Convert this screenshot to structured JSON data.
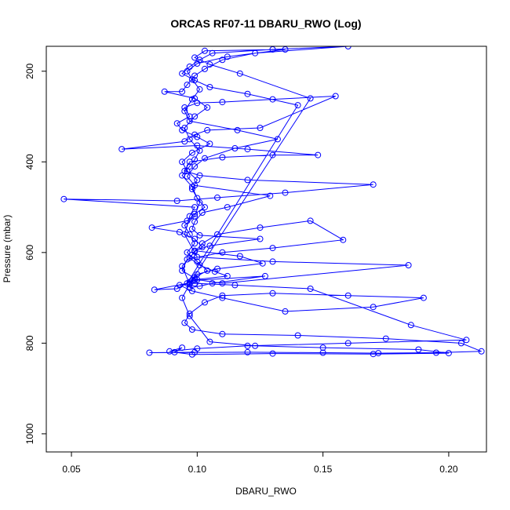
{
  "chart_data": {
    "type": "line",
    "title": "ORCAS RF07-11 DBARU_RWO (Log)",
    "xlabel": "DBARU_RWO",
    "ylabel": "Pressure (mbar)",
    "xlim": [
      0.04,
      0.215
    ],
    "ylim": [
      1040,
      145
    ],
    "y_inverted": true,
    "x_ticks": [
      0.05,
      0.1,
      0.15,
      0.2
    ],
    "x_tick_labels": [
      "0.05",
      "0.10",
      "0.15",
      "0.20"
    ],
    "y_ticks": [
      200,
      400,
      600,
      800,
      1000
    ],
    "y_tick_labels": [
      "200",
      "400",
      "600",
      "800",
      "1000"
    ],
    "grid": false,
    "marker": "open-circle",
    "series": [
      {
        "color": "#0000ff",
        "points": [
          [
            0.099,
            820
          ],
          [
            0.081,
            821
          ],
          [
            0.12,
            820
          ],
          [
            0.15,
            821
          ],
          [
            0.172,
            822
          ],
          [
            0.195,
            821
          ],
          [
            0.213,
            818
          ],
          [
            0.205,
            800
          ],
          [
            0.175,
            790
          ],
          [
            0.14,
            783
          ],
          [
            0.11,
            780
          ],
          [
            0.098,
            770
          ],
          [
            0.095,
            755
          ],
          [
            0.097,
            735
          ],
          [
            0.103,
            710
          ],
          [
            0.11,
            695
          ],
          [
            0.13,
            690
          ],
          [
            0.16,
            695
          ],
          [
            0.19,
            700
          ],
          [
            0.17,
            720
          ],
          [
            0.135,
            730
          ],
          [
            0.11,
            700
          ],
          [
            0.098,
            685
          ],
          [
            0.093,
            672
          ],
          [
            0.099,
            668
          ],
          [
            0.115,
            672
          ],
          [
            0.145,
            680
          ],
          [
            0.185,
            760
          ],
          [
            0.207,
            793
          ],
          [
            0.16,
            800
          ],
          [
            0.12,
            806
          ],
          [
            0.1,
            812
          ],
          [
            0.089,
            818
          ],
          [
            0.094,
            810
          ],
          [
            0.091,
            820
          ],
          [
            0.098,
            825
          ],
          [
            0.13,
            823
          ],
          [
            0.17,
            824
          ],
          [
            0.2,
            822
          ],
          [
            0.188,
            814
          ],
          [
            0.15,
            810
          ],
          [
            0.123,
            806
          ],
          [
            0.105,
            797
          ],
          [
            0.097,
            740
          ],
          [
            0.094,
            700
          ],
          [
            0.097,
            670
          ],
          [
            0.094,
            630
          ],
          [
            0.098,
            605
          ],
          [
            0.102,
            580
          ],
          [
            0.108,
            560
          ],
          [
            0.125,
            545
          ],
          [
            0.145,
            530
          ],
          [
            0.158,
            572
          ],
          [
            0.13,
            590
          ],
          [
            0.11,
            600
          ],
          [
            0.096,
            615
          ],
          [
            0.094,
            640
          ],
          [
            0.1,
            660
          ],
          [
            0.11,
            668
          ],
          [
            0.184,
            628
          ],
          [
            0.13,
            620
          ],
          [
            0.1,
            610
          ],
          [
            0.095,
            560
          ],
          [
            0.097,
            520
          ],
          [
            0.099,
            500
          ],
          [
            0.047,
            482
          ],
          [
            0.092,
            486
          ],
          [
            0.108,
            479
          ],
          [
            0.135,
            468
          ],
          [
            0.17,
            450
          ],
          [
            0.12,
            440
          ],
          [
            0.101,
            430
          ],
          [
            0.095,
            420
          ],
          [
            0.097,
            400
          ],
          [
            0.11,
            390
          ],
          [
            0.13,
            385
          ],
          [
            0.148,
            385
          ],
          [
            0.12,
            372
          ],
          [
            0.1,
            364
          ],
          [
            0.07,
            372
          ],
          [
            0.095,
            355
          ],
          [
            0.099,
            340
          ],
          [
            0.104,
            330
          ],
          [
            0.125,
            325
          ],
          [
            0.155,
            255
          ],
          [
            0.13,
            262
          ],
          [
            0.11,
            268
          ],
          [
            0.1,
            270
          ],
          [
            0.095,
            280
          ],
          [
            0.097,
            300
          ],
          [
            0.092,
            315
          ],
          [
            0.094,
            330
          ],
          [
            0.1,
            345
          ],
          [
            0.105,
            360
          ],
          [
            0.098,
            380
          ],
          [
            0.094,
            400
          ],
          [
            0.096,
            420
          ],
          [
            0.1,
            440
          ],
          [
            0.098,
            460
          ],
          [
            0.101,
            490
          ],
          [
            0.099,
            520
          ],
          [
            0.095,
            540
          ],
          [
            0.097,
            560
          ],
          [
            0.099,
            580
          ],
          [
            0.096,
            600
          ],
          [
            0.1,
            620
          ],
          [
            0.104,
            640
          ],
          [
            0.099,
            655
          ],
          [
            0.097,
            665
          ],
          [
            0.092,
            680
          ],
          [
            0.083,
            682
          ],
          [
            0.096,
            668
          ],
          [
            0.14,
            275
          ],
          [
            0.12,
            250
          ],
          [
            0.105,
            235
          ],
          [
            0.099,
            220
          ],
          [
            0.094,
            205
          ],
          [
            0.097,
            190
          ],
          [
            0.101,
            175
          ],
          [
            0.106,
            160
          ],
          [
            0.13,
            152
          ],
          [
            0.16,
            145
          ],
          [
            0.123,
            160
          ],
          [
            0.11,
            175
          ],
          [
            0.103,
            195
          ],
          [
            0.099,
            210
          ],
          [
            0.096,
            230
          ],
          [
            0.094,
            245
          ],
          [
            0.087,
            245
          ],
          [
            0.099,
            260
          ],
          [
            0.104,
            280
          ],
          [
            0.099,
            300
          ],
          [
            0.095,
            325
          ],
          [
            0.097,
            350
          ],
          [
            0.101,
            375
          ],
          [
            0.099,
            395
          ],
          [
            0.097,
            410
          ],
          [
            0.094,
            430
          ],
          [
            0.098,
            455
          ],
          [
            0.1,
            480
          ],
          [
            0.103,
            500
          ],
          [
            0.099,
            515
          ],
          [
            0.096,
            530
          ],
          [
            0.082,
            545
          ],
          [
            0.093,
            555
          ],
          [
            0.099,
            570
          ],
          [
            0.102,
            588
          ],
          [
            0.099,
            598
          ],
          [
            0.097,
            612
          ],
          [
            0.101,
            628
          ],
          [
            0.107,
            642
          ],
          [
            0.112,
            652
          ],
          [
            0.099,
            660
          ],
          [
            0.097,
            668
          ],
          [
            0.145,
            260
          ],
          [
            0.117,
            205
          ],
          [
            0.105,
            185
          ],
          [
            0.099,
            170
          ],
          [
            0.103,
            155
          ],
          [
            0.135,
            152
          ],
          [
            0.112,
            168
          ],
          [
            0.1,
            183
          ],
          [
            0.096,
            200
          ],
          [
            0.098,
            218
          ],
          [
            0.101,
            240
          ],
          [
            0.098,
            262
          ],
          [
            0.095,
            288
          ],
          [
            0.097,
            310
          ],
          [
            0.116,
            330
          ],
          [
            0.132,
            350
          ],
          [
            0.115,
            370
          ],
          [
            0.103,
            392
          ],
          [
            0.099,
            410
          ],
          [
            0.096,
            432
          ],
          [
            0.099,
            452
          ],
          [
            0.129,
            475
          ],
          [
            0.112,
            500
          ],
          [
            0.102,
            512
          ],
          [
            0.099,
            532
          ],
          [
            0.098,
            548
          ],
          [
            0.101,
            562
          ],
          [
            0.125,
            570
          ],
          [
            0.105,
            585
          ],
          [
            0.099,
            596
          ],
          [
            0.117,
            608
          ],
          [
            0.126,
            624
          ],
          [
            0.108,
            636
          ],
          [
            0.1,
            648
          ],
          [
            0.098,
            662
          ],
          [
            0.127,
            652
          ],
          [
            0.106,
            668
          ],
          [
            0.101,
            674
          ],
          [
            0.097,
            678
          ]
        ]
      }
    ]
  }
}
